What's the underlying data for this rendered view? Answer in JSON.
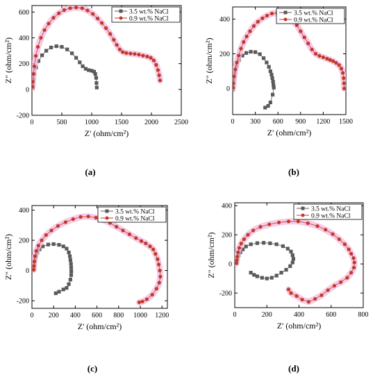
{
  "figure": {
    "legend_series": [
      "3.5 wt.% NaCl",
      "0.9 wt.% NaCl"
    ],
    "colors": {
      "nacl35": "#5a5a5a",
      "nacl09": "#c0392b",
      "halo": "#f4b8dc",
      "axis": "#000000"
    }
  },
  "chart_data": [
    {
      "type": "scatter",
      "panel_label": "(a)",
      "xlabel": "Z' (ohm/cm²)",
      "ylabel": "Z\" (ohm/cm²)",
      "xlim": [
        0,
        2500
      ],
      "ylim": [
        -200,
        650
      ],
      "xticks": [
        0,
        500,
        1000,
        1500,
        2000,
        2500
      ],
      "yticks": [
        -200,
        0,
        200,
        400,
        600
      ],
      "legend_position": "top-right",
      "series": [
        {
          "name": "3.5 wt.% NaCl",
          "marker": "square",
          "points": [
            [
              10,
              10
            ],
            [
              15,
              40
            ],
            [
              25,
              80
            ],
            [
              40,
              120
            ],
            [
              70,
              170
            ],
            [
              110,
              220
            ],
            [
              170,
              265
            ],
            [
              240,
              300
            ],
            [
              320,
              325
            ],
            [
              410,
              335
            ],
            [
              500,
              330
            ],
            [
              590,
              310
            ],
            [
              670,
              280
            ],
            [
              740,
              245
            ],
            [
              800,
              210
            ],
            [
              850,
              180
            ],
            [
              900,
              160
            ],
            [
              950,
              150
            ],
            [
              1000,
              145
            ],
            [
              1040,
              138
            ],
            [
              1060,
              120
            ],
            [
              1075,
              90
            ],
            [
              1080,
              50
            ],
            [
              1085,
              15
            ]
          ]
        },
        {
          "name": "0.9 wt.% NaCl",
          "marker": "circle",
          "points": [
            [
              10,
              20
            ],
            [
              15,
              60
            ],
            [
              25,
              120
            ],
            [
              40,
              180
            ],
            [
              65,
              260
            ],
            [
              100,
              330
            ],
            [
              150,
              400
            ],
            [
              210,
              460
            ],
            [
              280,
              510
            ],
            [
              360,
              555
            ],
            [
              450,
              590
            ],
            [
              540,
              615
            ],
            [
              640,
              630
            ],
            [
              740,
              635
            ],
            [
              840,
              630
            ],
            [
              930,
              612
            ],
            [
              1020,
              585
            ],
            [
              1100,
              550
            ],
            [
              1170,
              515
            ],
            [
              1240,
              475
            ],
            [
              1310,
              430
            ],
            [
              1370,
              385
            ],
            [
              1420,
              345
            ],
            [
              1470,
              310
            ],
            [
              1520,
              290
            ],
            [
              1580,
              282
            ],
            [
              1650,
              278
            ],
            [
              1720,
              275
            ],
            [
              1790,
              270
            ],
            [
              1860,
              262
            ],
            [
              1930,
              255
            ],
            [
              1990,
              245
            ],
            [
              2040,
              225
            ],
            [
              2080,
              190
            ],
            [
              2110,
              150
            ],
            [
              2130,
              110
            ],
            [
              2145,
              70
            ]
          ]
        }
      ]
    },
    {
      "type": "scatter",
      "panel_label": "(b)",
      "xlabel": "Z' (ohm/cm²)",
      "ylabel": "Z\" (ohm/cm²)",
      "xlim": [
        0,
        1500
      ],
      "ylim": [
        -150,
        470
      ],
      "xticks": [
        0,
        300,
        600,
        900,
        1200,
        1500
      ],
      "yticks": [
        0,
        200,
        400
      ],
      "legend_position": "top-right",
      "series": [
        {
          "name": "3.5 wt.% NaCl",
          "marker": "square",
          "points": [
            [
              5,
              -5
            ],
            [
              8,
              20
            ],
            [
              15,
              50
            ],
            [
              28,
              90
            ],
            [
              50,
              130
            ],
            [
              85,
              165
            ],
            [
              130,
              190
            ],
            [
              180,
              205
            ],
            [
              240,
              212
            ],
            [
              300,
              210
            ],
            [
              360,
              198
            ],
            [
              410,
              175
            ],
            [
              450,
              150
            ],
            [
              480,
              125
            ],
            [
              500,
              100
            ],
            [
              515,
              80
            ],
            [
              525,
              60
            ],
            [
              535,
              40
            ],
            [
              540,
              20
            ],
            [
              545,
              5
            ],
            [
              530,
              -35
            ],
            [
              500,
              -80
            ],
            [
              470,
              -100
            ],
            [
              430,
              -110
            ]
          ]
        },
        {
          "name": "0.9 wt.% NaCl",
          "marker": "circle",
          "points": [
            [
              5,
              5
            ],
            [
              10,
              30
            ],
            [
              20,
              70
            ],
            [
              35,
              110
            ],
            [
              55,
              150
            ],
            [
              80,
              190
            ],
            [
              110,
              230
            ],
            [
              145,
              268
            ],
            [
              185,
              300
            ],
            [
              230,
              330
            ],
            [
              280,
              360
            ],
            [
              335,
              385
            ],
            [
              395,
              405
            ],
            [
              455,
              420
            ],
            [
              520,
              432
            ],
            [
              590,
              435
            ],
            [
              660,
              430
            ],
            [
              730,
              415
            ],
            [
              790,
              395
            ],
            [
              850,
              365
            ],
            [
              900,
              330
            ],
            [
              950,
              295
            ],
            [
              1000,
              260
            ],
            [
              1050,
              225
            ],
            [
              1100,
              200
            ],
            [
              1150,
              188
            ],
            [
              1200,
              180
            ],
            [
              1250,
              172
            ],
            [
              1290,
              165
            ],
            [
              1330,
              158
            ],
            [
              1370,
              148
            ],
            [
              1410,
              135
            ],
            [
              1440,
              115
            ],
            [
              1460,
              90
            ],
            [
              1470,
              60
            ],
            [
              1475,
              30
            ],
            [
              1478,
              0
            ]
          ]
        }
      ]
    },
    {
      "type": "scatter",
      "panel_label": "(c)",
      "xlabel": "Z' (ohm/cm²)",
      "ylabel": "Z\" (ohm/cm²)",
      "xlim": [
        0,
        1250
      ],
      "ylim": [
        -250,
        430
      ],
      "xticks": [
        0,
        200,
        400,
        600,
        800,
        1000,
        1200
      ],
      "yticks": [
        -200,
        0,
        200,
        400
      ],
      "legend_position": "top-right",
      "series": [
        {
          "name": "3.5 wt.% NaCl",
          "marker": "square",
          "points": [
            [
              18,
              5
            ],
            [
              20,
              20
            ],
            [
              22,
              40
            ],
            [
              25,
              60
            ],
            [
              30,
              80
            ],
            [
              38,
              100
            ],
            [
              50,
              120
            ],
            [
              70,
              140
            ],
            [
              100,
              160
            ],
            [
              150,
              172
            ],
            [
              200,
              175
            ],
            [
              250,
              170
            ],
            [
              290,
              160
            ],
            [
              320,
              145
            ],
            [
              340,
              120
            ],
            [
              350,
              95
            ],
            [
              355,
              70
            ],
            [
              360,
              45
            ],
            [
              362,
              20
            ],
            [
              363,
              -5
            ],
            [
              362,
              -30
            ],
            [
              355,
              -60
            ],
            [
              340,
              -90
            ],
            [
              320,
              -115
            ],
            [
              290,
              -125
            ],
            [
              250,
              -140
            ],
            [
              220,
              -150
            ]
          ]
        },
        {
          "name": "0.9 wt.% NaCl",
          "marker": "circle",
          "points": [
            [
              15,
              5
            ],
            [
              18,
              30
            ],
            [
              22,
              60
            ],
            [
              28,
              95
            ],
            [
              40,
              130
            ],
            [
              60,
              165
            ],
            [
              90,
              200
            ],
            [
              130,
              235
            ],
            [
              180,
              265
            ],
            [
              240,
              295
            ],
            [
              310,
              320
            ],
            [
              380,
              340
            ],
            [
              450,
              355
            ],
            [
              520,
              358
            ],
            [
              590,
              350
            ],
            [
              660,
              335
            ],
            [
              720,
              315
            ],
            [
              780,
              290
            ],
            [
              840,
              265
            ],
            [
              900,
              240
            ],
            [
              960,
              215
            ],
            [
              1010,
              195
            ],
            [
              1050,
              180
            ],
            [
              1090,
              160
            ],
            [
              1120,
              140
            ],
            [
              1140,
              110
            ],
            [
              1160,
              75
            ],
            [
              1170,
              40
            ],
            [
              1180,
              0
            ],
            [
              1185,
              -40
            ],
            [
              1175,
              -80
            ],
            [
              1150,
              -120
            ],
            [
              1110,
              -160
            ],
            [
              1060,
              -190
            ],
            [
              1020,
              -205
            ],
            [
              990,
              -210
            ]
          ]
        }
      ]
    },
    {
      "type": "scatter",
      "panel_label": "(d)",
      "xlabel": "Z' (ohm/cm²)",
      "ylabel": "Z\" (ohm/cm²)",
      "xlim": [
        0,
        800
      ],
      "ylim": [
        -300,
        420
      ],
      "xticks": [
        0,
        200,
        400,
        600,
        800
      ],
      "yticks": [
        -200,
        0,
        200,
        400
      ],
      "legend_position": "top-right",
      "series": [
        {
          "name": "3.5 wt.% NaCl",
          "marker": "square",
          "points": [
            [
              12,
              5
            ],
            [
              14,
              20
            ],
            [
              18,
              40
            ],
            [
              25,
              60
            ],
            [
              35,
              80
            ],
            [
              50,
              100
            ],
            [
              70,
              120
            ],
            [
              100,
              135
            ],
            [
              140,
              143
            ],
            [
              180,
              145
            ],
            [
              220,
              142
            ],
            [
              260,
              135
            ],
            [
              300,
              122
            ],
            [
              330,
              105
            ],
            [
              350,
              85
            ],
            [
              360,
              60
            ],
            [
              365,
              35
            ],
            [
              360,
              10
            ],
            [
              345,
              -15
            ],
            [
              320,
              -40
            ],
            [
              290,
              -60
            ],
            [
              260,
              -80
            ],
            [
              230,
              -95
            ],
            [
              200,
              -100
            ],
            [
              170,
              -95
            ],
            [
              140,
              -85
            ],
            [
              120,
              -75
            ],
            [
              100,
              -60
            ]
          ]
        },
        {
          "name": "0.9 wt.% NaCl",
          "marker": "circle",
          "points": [
            [
              10,
              5
            ],
            [
              12,
              25
            ],
            [
              15,
              50
            ],
            [
              20,
              80
            ],
            [
              28,
              110
            ],
            [
              40,
              140
            ],
            [
              58,
              170
            ],
            [
              82,
              200
            ],
            [
              115,
              230
            ],
            [
              160,
              255
            ],
            [
              215,
              272
            ],
            [
              275,
              285
            ],
            [
              335,
              292
            ],
            [
              395,
              292
            ],
            [
              455,
              280
            ],
            [
              515,
              260
            ],
            [
              565,
              235
            ],
            [
              610,
              205
            ],
            [
              650,
              170
            ],
            [
              685,
              135
            ],
            [
              710,
              100
            ],
            [
              725,
              70
            ],
            [
              740,
              40
            ],
            [
              745,
              10
            ],
            [
              742,
              -25
            ],
            [
              725,
              -60
            ],
            [
              700,
              -95
            ],
            [
              660,
              -125
            ],
            [
              620,
              -150
            ],
            [
              580,
              -180
            ],
            [
              540,
              -215
            ],
            [
              500,
              -240
            ],
            [
              460,
              -260
            ],
            [
              420,
              -245
            ],
            [
              385,
              -220
            ],
            [
              350,
              -200
            ],
            [
              335,
              -175
            ]
          ]
        }
      ]
    }
  ]
}
